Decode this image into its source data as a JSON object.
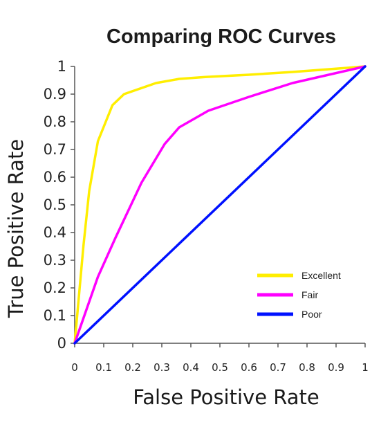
{
  "chart_data": {
    "type": "line",
    "title": "Comparing ROC Curves",
    "xlabel": "False Positive Rate",
    "ylabel": "True Positive Rate",
    "xlim": [
      0,
      1
    ],
    "ylim": [
      0,
      1
    ],
    "grid": false,
    "legend_position": "bottom-right",
    "x_ticks": [
      "0",
      "0.1",
      "0.2",
      "0.3",
      "0.4",
      "0.5",
      "0.6",
      "0.7",
      "0.8",
      "0.9",
      "1"
    ],
    "y_ticks": [
      "0",
      "0.1",
      "0.2",
      "0.3",
      "0.4",
      "0.5",
      "0.6",
      "0.7",
      "0.8",
      "0.9",
      "1"
    ],
    "series": [
      {
        "name": "Excellent",
        "color": "#ffee00",
        "points": [
          [
            0,
            0
          ],
          [
            0.03,
            0.35
          ],
          [
            0.05,
            0.55
          ],
          [
            0.08,
            0.73
          ],
          [
            0.13,
            0.86
          ],
          [
            0.17,
            0.9
          ],
          [
            0.28,
            0.94
          ],
          [
            0.36,
            0.955
          ],
          [
            0.45,
            0.962
          ],
          [
            0.6,
            0.97
          ],
          [
            0.75,
            0.98
          ],
          [
            1,
            1
          ]
        ]
      },
      {
        "name": "Fair",
        "color": "#ff00ff",
        "points": [
          [
            0,
            0
          ],
          [
            0.04,
            0.12
          ],
          [
            0.08,
            0.24
          ],
          [
            0.14,
            0.38
          ],
          [
            0.23,
            0.58
          ],
          [
            0.31,
            0.72
          ],
          [
            0.36,
            0.78
          ],
          [
            0.46,
            0.84
          ],
          [
            0.6,
            0.89
          ],
          [
            0.75,
            0.94
          ],
          [
            1,
            1
          ]
        ]
      },
      {
        "name": "Poor",
        "color": "#0011ff",
        "points": [
          [
            0,
            0
          ],
          [
            1,
            1
          ]
        ]
      }
    ]
  }
}
